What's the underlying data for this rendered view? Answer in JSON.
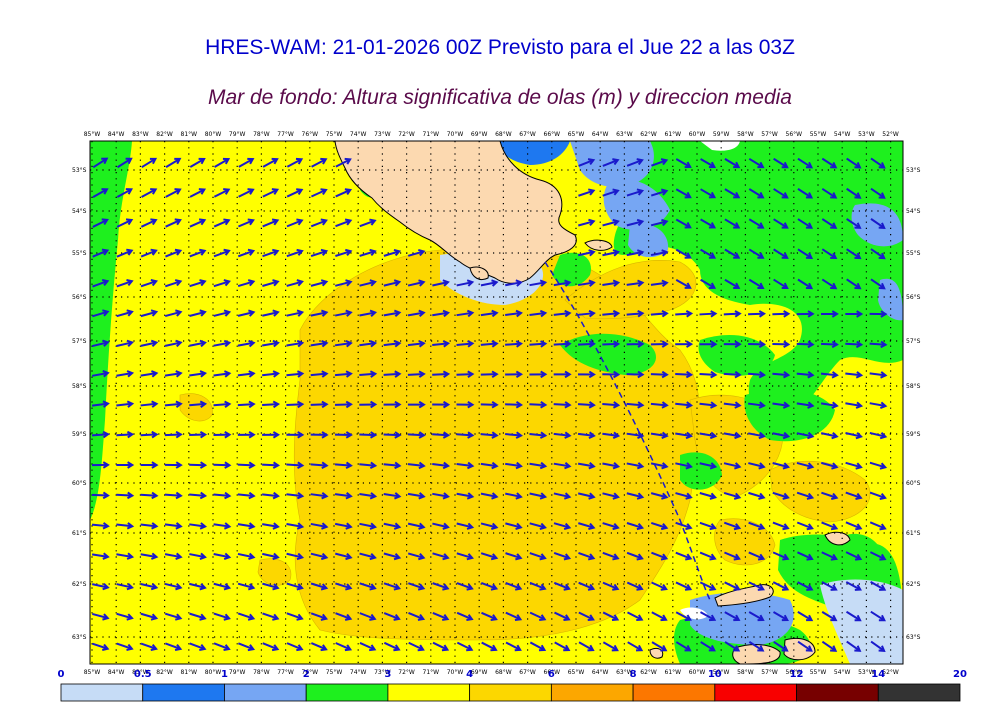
{
  "title": "HRES-WAM: 21-01-2026 00Z Previsto para el Jue 22 a las 03Z",
  "subtitle": "Mar de fondo: Altura significativa de olas (m) y direccion media",
  "map": {
    "lon_labels": [
      "85°W",
      "84°W",
      "83°W",
      "82°W",
      "81°W",
      "80°W",
      "79°W",
      "78°W",
      "77°W",
      "76°W",
      "75°W",
      "74°W",
      "73°W",
      "72°W",
      "71°W",
      "70°W",
      "69°W",
      "68°W",
      "67°W",
      "66°W",
      "65°W",
      "64°W",
      "63°W",
      "62°W",
      "61°W",
      "60°W",
      "59°W",
      "58°W",
      "57°W",
      "56°W",
      "55°W",
      "54°W",
      "53°W",
      "52°W"
    ],
    "lat_labels": [
      "53°S",
      "54°S",
      "55°S",
      "56°S",
      "57°S",
      "58°S",
      "59°S",
      "60°S",
      "61°S",
      "62°S",
      "63°S"
    ],
    "arrow_color": "#1a1acc",
    "land_color": "#fcd9b0",
    "legend": {
      "levels": [
        "0",
        "0.5",
        "1",
        "2",
        "3",
        "4",
        "6",
        "8",
        "10",
        "12",
        "14",
        "20"
      ],
      "colors": [
        "#c6dcf6",
        "#1e78f0",
        "#76a6f3",
        "#1ef01e",
        "#ffff00",
        "#fcd700",
        "#fca700",
        "#fc7700",
        "#f80000",
        "#770000",
        "#333333"
      ]
    }
  }
}
